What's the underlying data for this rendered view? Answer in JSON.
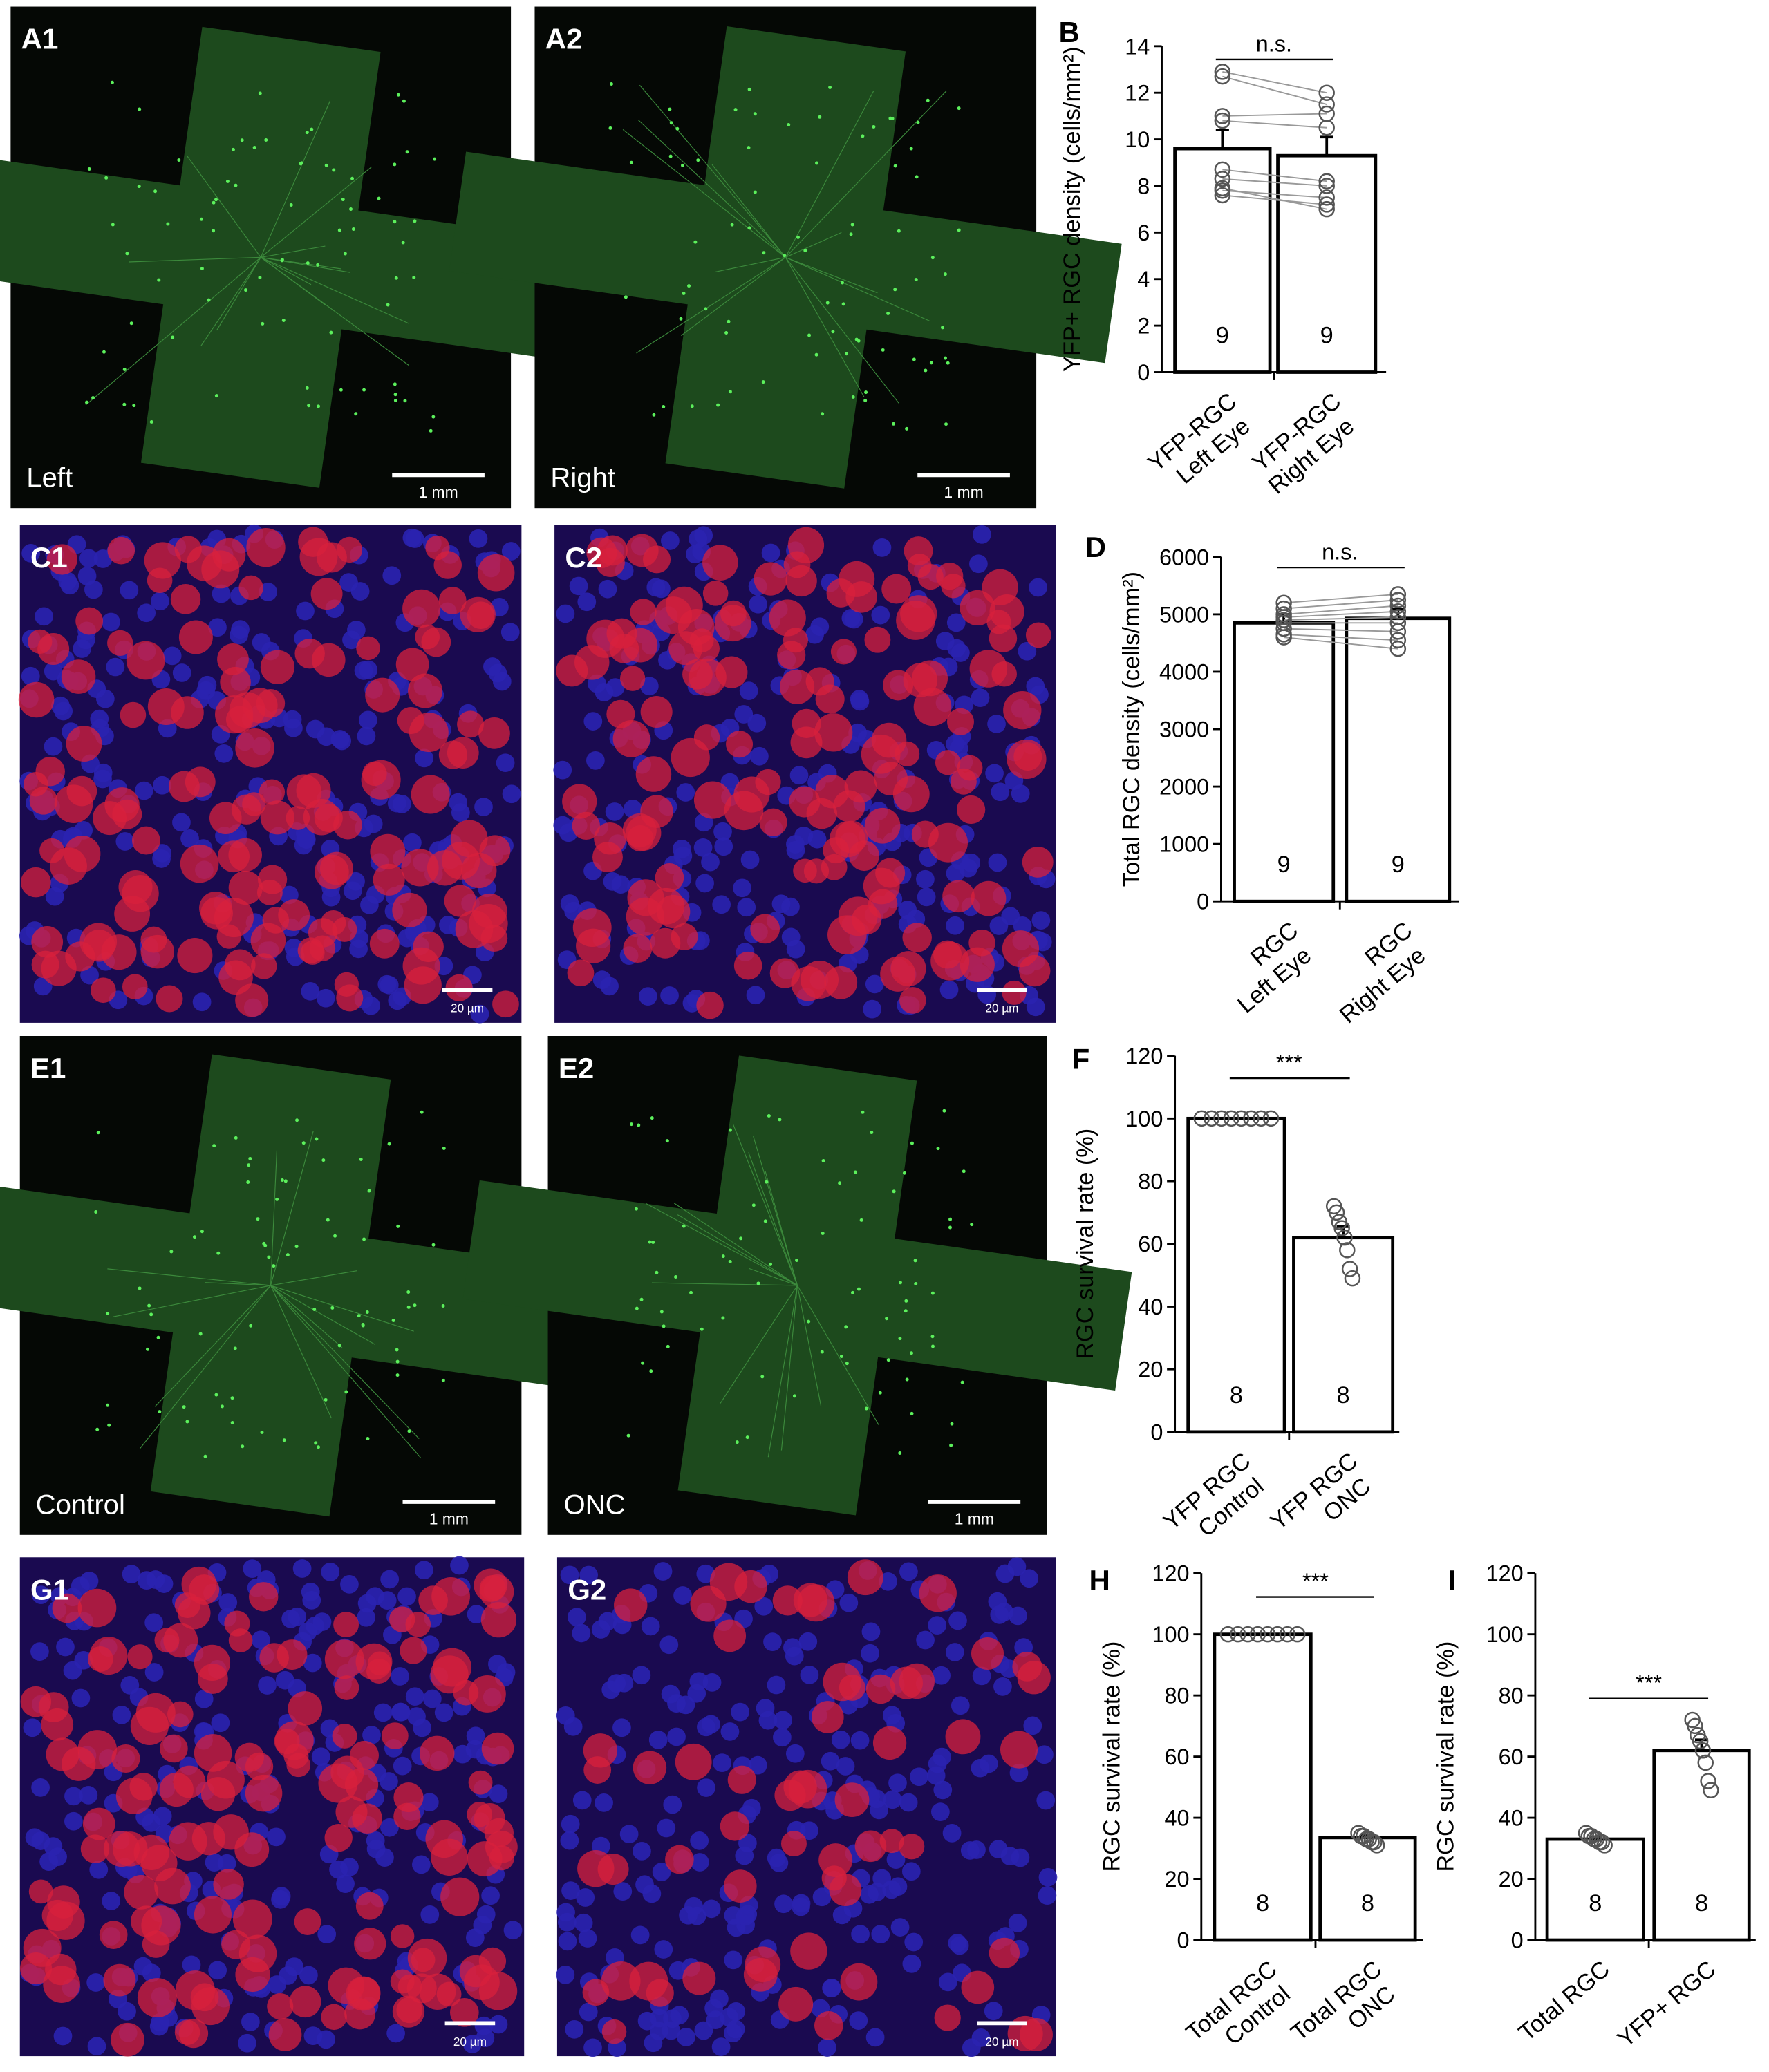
{
  "panels": [
    {
      "label": "A1",
      "caption": "Left",
      "scale": "1 mm"
    },
    {
      "label": "A2",
      "caption": "Right",
      "scale": "1 mm"
    },
    {
      "label": "C1",
      "scale": "20 µm"
    },
    {
      "label": "C2",
      "scale": "20 µm"
    },
    {
      "label": "E1",
      "caption": "Control",
      "scale": "1 mm"
    },
    {
      "label": "E2",
      "caption": "ONC",
      "scale": "1 mm"
    },
    {
      "label": "G1",
      "scale": "20 µm"
    },
    {
      "label": "G2",
      "scale": "20 µm"
    }
  ],
  "chart_data": [
    {
      "type": "bar",
      "panel": "B",
      "ylabel": "YFP+ RGC density (cells/mm²)",
      "significance": "n.s.",
      "categories": [
        [
          "YFP-RGC",
          "Left Eye"
        ],
        [
          "YFP-RGC",
          "Right Eye"
        ]
      ],
      "values": [
        9.6,
        9.3
      ],
      "errors": [
        0.8,
        0.8
      ],
      "n": [
        9,
        9
      ],
      "paired": true,
      "points": [
        [
          12.9,
          12.7,
          11.0,
          10.8,
          8.7,
          8.3,
          7.8,
          7.6,
          7.9
        ],
        [
          12.0,
          11.5,
          11.1,
          10.5,
          8.2,
          8.0,
          7.5,
          7.2,
          7.0
        ]
      ],
      "ylim": [
        0,
        14
      ],
      "yticks": [
        0,
        2,
        4,
        6,
        8,
        10,
        12,
        14
      ],
      "color": "#ffffff"
    },
    {
      "type": "bar",
      "panel": "D",
      "ylabel": "Total RGC density (cells/mm²)",
      "significance": "n.s.",
      "categories": [
        [
          "RGC",
          "Left Eye"
        ],
        [
          "RGC",
          "Right Eye"
        ]
      ],
      "values": [
        4850,
        4930
      ],
      "errors": [
        150,
        160
      ],
      "n": [
        9,
        9
      ],
      "paired": true,
      "points": [
        [
          5200,
          5100,
          5000,
          4950,
          4900,
          4850,
          4750,
          4650,
          4600
        ],
        [
          5350,
          5250,
          5150,
          5050,
          4950,
          4850,
          4700,
          4550,
          4400
        ]
      ],
      "ylim": [
        0,
        6000
      ],
      "yticks": [
        0,
        1000,
        2000,
        3000,
        4000,
        5000,
        6000
      ],
      "color": "#ffffff"
    },
    {
      "type": "bar",
      "panel": "F",
      "ylabel": "RGC survival rate (%)",
      "significance": "***",
      "categories": [
        [
          "YFP RGC",
          "Control"
        ],
        [
          "YFP RGC",
          "ONC"
        ]
      ],
      "values": [
        100,
        62
      ],
      "errors": [
        0,
        3.5
      ],
      "n": [
        8,
        8
      ],
      "paired": false,
      "points": [
        [
          100,
          100,
          100,
          100,
          100,
          100,
          100,
          100
        ],
        [
          72,
          70,
          67,
          65,
          62,
          58,
          52,
          49
        ]
      ],
      "ylim": [
        0,
        120
      ],
      "yticks": [
        0,
        20,
        40,
        60,
        80,
        100,
        120
      ],
      "color": "#ffffff"
    },
    {
      "type": "bar",
      "panel": "H",
      "ylabel": "RGC survival rate (%)",
      "significance": "***",
      "categories": [
        [
          "Total RGC",
          "Control"
        ],
        [
          "Total RGC",
          "ONC"
        ]
      ],
      "values": [
        100,
        33.5
      ],
      "errors": [
        0,
        0.8
      ],
      "n": [
        8,
        8
      ],
      "paired": false,
      "points": [
        [
          100,
          100,
          100,
          100,
          100,
          100,
          100,
          100
        ],
        [
          35,
          34,
          34,
          33,
          33,
          32,
          32,
          31
        ]
      ],
      "ylim": [
        0,
        120
      ],
      "yticks": [
        0,
        20,
        40,
        60,
        80,
        100,
        120
      ],
      "color": "#ffffff"
    },
    {
      "type": "bar",
      "panel": "I",
      "ylabel": "RGC survival rate (%)",
      "significance": "***",
      "categories": [
        [
          "Total RGC"
        ],
        [
          "YFP+ RGC"
        ]
      ],
      "values": [
        33,
        62
      ],
      "errors": [
        0.8,
        3.5
      ],
      "n": [
        8,
        8
      ],
      "paired": false,
      "points": [
        [
          35,
          34,
          34,
          33,
          33,
          32,
          32,
          31
        ],
        [
          72,
          70,
          67,
          65,
          62,
          58,
          52,
          49
        ]
      ],
      "ylim": [
        0,
        120
      ],
      "yticks": [
        0,
        20,
        40,
        60,
        80,
        100,
        120
      ],
      "color": "#ffffff"
    }
  ]
}
